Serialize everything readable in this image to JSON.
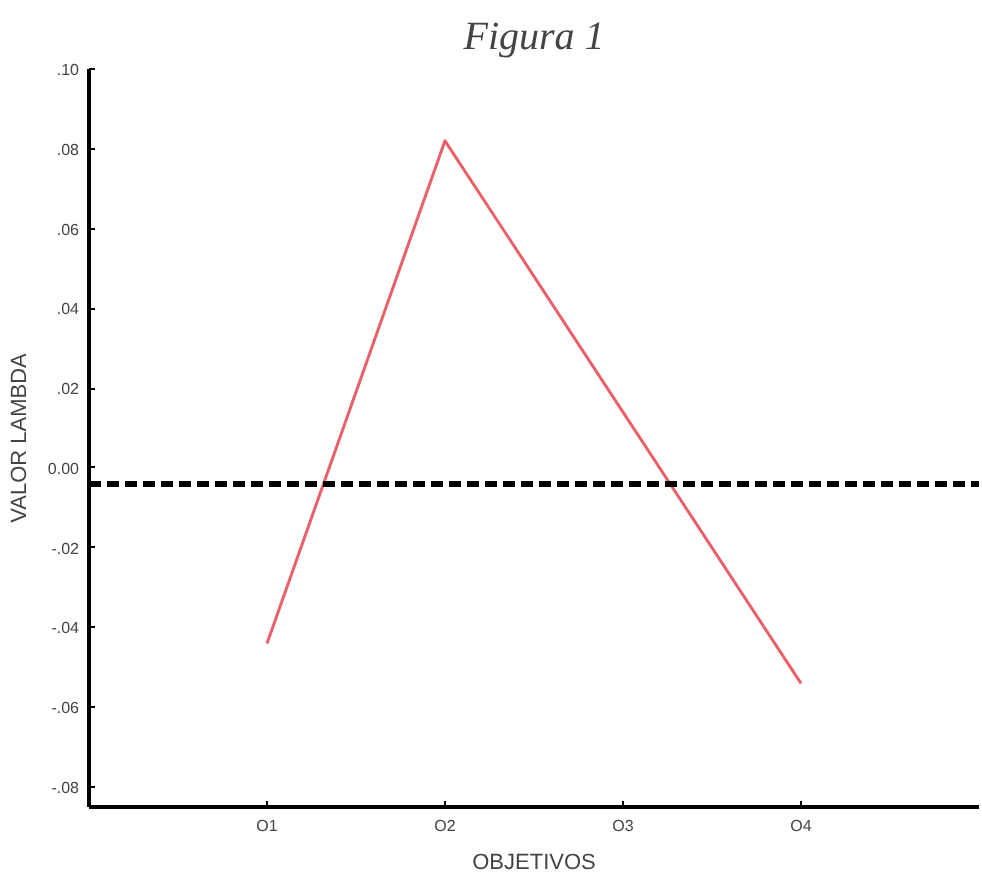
{
  "chart_data": {
    "type": "line",
    "title": "Figura 1",
    "xlabel": "OBJETIVOS",
    "ylabel": "VALOR LAMBDA",
    "categories": [
      "O1",
      "O2",
      "O3",
      "O4"
    ],
    "series": [
      {
        "color": "#e8606a",
        "values": [
          -0.044,
          0.082,
          0.014,
          -0.054
        ]
      }
    ],
    "ylim": [
      -0.085,
      0.1
    ],
    "yticks": [
      {
        "value": 0.1,
        "label": ".10"
      },
      {
        "value": 0.08,
        "label": ".08"
      },
      {
        "value": 0.06,
        "label": ".06"
      },
      {
        "value": 0.04,
        "label": ".04"
      },
      {
        "value": 0.02,
        "label": ".02"
      },
      {
        "value": 0,
        "label": "0.00"
      },
      {
        "value": -0.02,
        "label": "-.02"
      },
      {
        "value": -0.04,
        "label": "-.04"
      },
      {
        "value": -0.06,
        "label": "-.06"
      },
      {
        "value": -0.08,
        "label": "-.08"
      }
    ],
    "ref_lines": [
      {
        "axis": "y",
        "value": -0.004,
        "color": "#000000",
        "line_style": "dashed"
      }
    ],
    "grid": false,
    "marker": "none",
    "line_style": "solid"
  }
}
